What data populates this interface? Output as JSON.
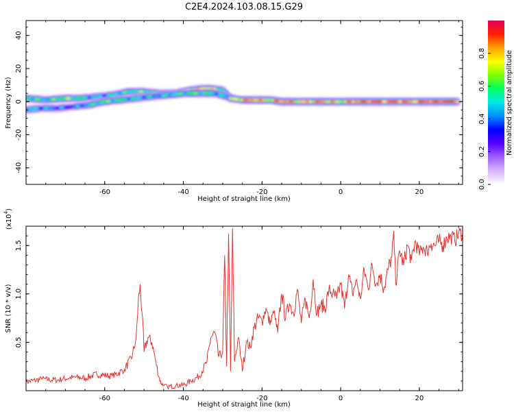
{
  "title": "C2E4.2024.103.08.15.G29",
  "colors": {
    "snr_line": "#e8302a",
    "colormap": [
      "#ffffff",
      "#d8b4ff",
      "#a060ff",
      "#5500ff",
      "#0000ff",
      "#0090ff",
      "#00e8e8",
      "#00ff60",
      "#80ff00",
      "#ffff00",
      "#ffa000",
      "#ff2000",
      "#e0005a"
    ]
  },
  "chart_data": [
    {
      "type": "heatmap",
      "xlabel": "Height of straight line (km)",
      "ylabel": "Frequency (Hz)",
      "xlim": [
        -80,
        31
      ],
      "ylim": [
        -50,
        49
      ],
      "xticks": [
        -60,
        -40,
        -20,
        0,
        20
      ],
      "xtick_labels": [
        "-60",
        "-40",
        "-20",
        "0",
        "20"
      ],
      "yticks": [
        -40,
        -20,
        0,
        20,
        40
      ],
      "ytick_labels": [
        "-40",
        "-20",
        "0",
        "20",
        "40"
      ],
      "grid": false,
      "colorbar": {
        "label": "Normalized spectral amplitude",
        "range": [
          0,
          1
        ],
        "ticks": [
          0.0,
          0.2,
          0.4,
          0.6,
          0.8
        ],
        "tick_labels": [
          "0.0",
          "0.2",
          "0.4",
          "0.6",
          "0.8"
        ]
      },
      "ridges": [
        {
          "name": "",
          "x": [
            -80,
            -75,
            -70,
            -66,
            -62,
            -58,
            -54,
            -50,
            -46,
            -42,
            -38,
            -34,
            -30,
            -28
          ],
          "y": [
            2,
            1,
            2,
            2,
            3,
            4,
            6,
            6,
            5,
            5,
            7,
            8,
            7,
            2
          ],
          "amplitude": [
            0.6,
            0.5,
            0.65,
            0.55,
            0.45,
            0.5,
            0.55,
            0.6,
            0.5,
            0.6,
            0.75,
            0.8,
            0.55,
            0.5
          ]
        },
        {
          "name": "",
          "x": [
            -80,
            -76,
            -72,
            -68,
            -64,
            -60,
            -56,
            -52,
            -48,
            -44,
            -40,
            -36,
            -32,
            -29
          ],
          "y": [
            -5,
            -4,
            -4,
            -3,
            -2,
            0,
            1,
            2,
            3,
            4,
            5,
            5,
            5,
            3
          ],
          "amplitude": [
            0.5,
            0.45,
            0.4,
            0.35,
            0.5,
            0.6,
            0.55,
            0.5,
            0.45,
            0.5,
            0.55,
            0.6,
            0.5,
            0.45
          ]
        },
        {
          "name": "",
          "x": [
            -28,
            -25,
            -22,
            -18,
            -15,
            -12,
            -9,
            -6,
            -3,
            0,
            3,
            6,
            9,
            12,
            15,
            18,
            21,
            24,
            27,
            30
          ],
          "y": [
            2,
            1,
            1,
            1,
            0,
            0,
            0,
            0,
            0,
            0,
            0,
            0,
            0,
            0,
            0,
            0,
            0,
            0,
            0,
            0
          ],
          "amplitude": [
            0.65,
            0.8,
            0.85,
            0.7,
            0.9,
            0.8,
            0.75,
            0.85,
            0.8,
            0.7,
            0.85,
            0.9,
            0.9,
            0.85,
            0.9,
            0.8,
            0.9,
            0.9,
            0.95,
            0.9
          ]
        }
      ]
    },
    {
      "type": "line",
      "xlabel": "Height of straight line (km)",
      "ylabel": "SNR (10 * v/v)",
      "y_multiplier_label": "(x10",
      "y_multiplier_exp": "4",
      "y_multiplier_close": ")",
      "xlim": [
        -80,
        31
      ],
      "ylim": [
        0,
        1.7
      ],
      "xticks": [
        -60,
        -40,
        -20,
        0,
        20
      ],
      "xtick_labels": [
        "-60",
        "-40",
        "-20",
        "0",
        "20"
      ],
      "yticks": [
        0.5,
        1.0,
        1.5
      ],
      "ytick_labels": [
        "0.5",
        "1.0",
        "1.5"
      ],
      "grid": false,
      "series": [
        {
          "name": "",
          "x": [
            -80,
            -76,
            -72,
            -68,
            -65,
            -62,
            -58,
            -55,
            -53,
            -52,
            -51.5,
            -51,
            -50.5,
            -50,
            -49,
            -48,
            -47,
            -46,
            -45,
            -44,
            -42,
            -40,
            -38,
            -36,
            -34,
            -33,
            -32,
            -31,
            -30,
            -29.5,
            -29,
            -28.5,
            -28,
            -27.5,
            -27,
            -26,
            -25,
            -24,
            -23,
            -22,
            -21,
            -20,
            -19,
            -18,
            -17,
            -16,
            -15,
            -14,
            -13,
            -12,
            -11,
            -10,
            -9,
            -8,
            -7,
            -6,
            -5,
            -4,
            -3,
            -2,
            -1,
            0,
            1,
            2,
            3,
            4,
            5,
            6,
            7,
            8,
            9,
            10,
            11,
            12,
            13,
            13.5,
            14,
            15,
            16,
            17,
            18,
            19,
            20,
            21,
            22,
            23,
            24,
            25,
            26,
            27,
            28,
            29,
            30,
            31
          ],
          "y": [
            0.09,
            0.12,
            0.11,
            0.14,
            0.13,
            0.17,
            0.15,
            0.22,
            0.35,
            0.55,
            0.9,
            1.1,
            0.8,
            0.4,
            0.55,
            0.5,
            0.3,
            0.1,
            0.05,
            0.04,
            0.05,
            0.06,
            0.1,
            0.15,
            0.3,
            0.55,
            0.6,
            0.35,
            0.4,
            1.4,
            0.25,
            1.62,
            0.2,
            1.68,
            0.3,
            0.55,
            0.2,
            0.5,
            0.45,
            0.65,
            0.75,
            0.72,
            0.85,
            0.68,
            0.8,
            0.6,
            1.0,
            0.75,
            0.9,
            0.8,
            1.05,
            0.7,
            0.95,
            0.75,
            1.15,
            0.8,
            0.9,
            0.85,
            1.05,
            1.0,
            0.95,
            1.1,
            0.85,
            1.2,
            1.0,
            1.15,
            0.95,
            1.25,
            1.05,
            1.3,
            1.1,
            1.2,
            1.05,
            1.25,
            1.38,
            1.65,
            1.1,
            1.45,
            1.3,
            1.5,
            1.35,
            1.55,
            1.4,
            1.48,
            1.45,
            1.52,
            1.5,
            1.55,
            1.5,
            1.58,
            1.6,
            1.55,
            1.62,
            1.63
          ]
        }
      ]
    }
  ]
}
